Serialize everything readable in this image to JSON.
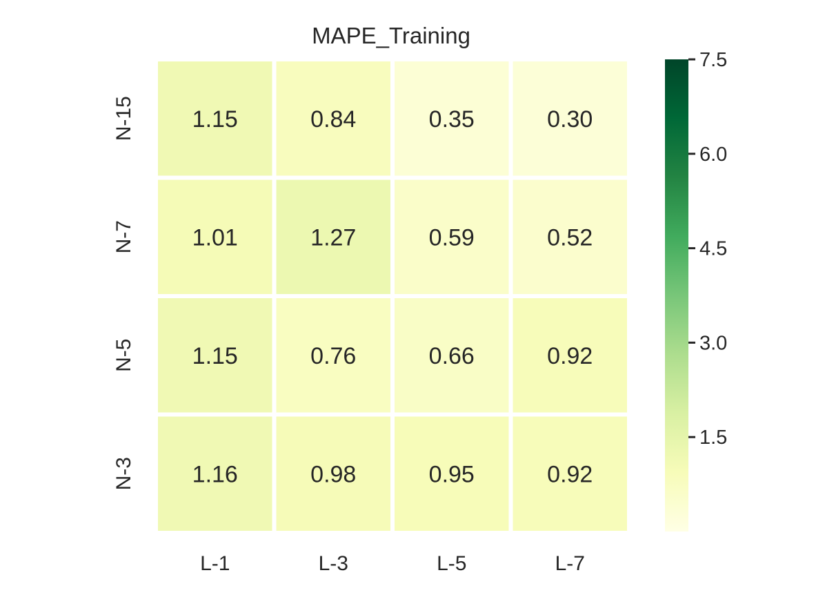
{
  "chart_data": {
    "type": "heatmap",
    "title": "MAPE_Training",
    "xlabel": "",
    "ylabel": "",
    "x_categories": [
      "L-1",
      "L-3",
      "L-5",
      "L-7"
    ],
    "y_categories": [
      "N-15",
      "N-7",
      "N-5",
      "N-3"
    ],
    "values": [
      [
        1.15,
        0.84,
        0.35,
        0.3
      ],
      [
        1.01,
        1.27,
        0.59,
        0.52
      ],
      [
        1.15,
        0.76,
        0.66,
        0.92
      ],
      [
        1.16,
        0.98,
        0.95,
        0.92
      ]
    ],
    "value_labels": [
      [
        "1.15",
        "0.84",
        "0.35",
        "0.30"
      ],
      [
        "1.01",
        "1.27",
        "0.59",
        "0.52"
      ],
      [
        "1.15",
        "0.76",
        "0.66",
        "0.92"
      ],
      [
        "1.16",
        "0.98",
        "0.95",
        "0.92"
      ]
    ],
    "colormap": "YlGn",
    "vmin": 0,
    "vmax": 7.5,
    "colorbar": {
      "ticks": [
        1.5,
        3.0,
        4.5,
        6.0,
        7.5
      ],
      "tick_labels": [
        "1.5",
        "3.0",
        "4.5",
        "6.0",
        "7.5"
      ]
    },
    "colors": {
      "cmap_stops": [
        "#ffffe5",
        "#f7fcb9",
        "#d9f0a3",
        "#addd8e",
        "#78c679",
        "#41ab5d",
        "#238443",
        "#006837",
        "#004529"
      ],
      "text": "#262626",
      "cell_gap": "#ffffff"
    }
  }
}
